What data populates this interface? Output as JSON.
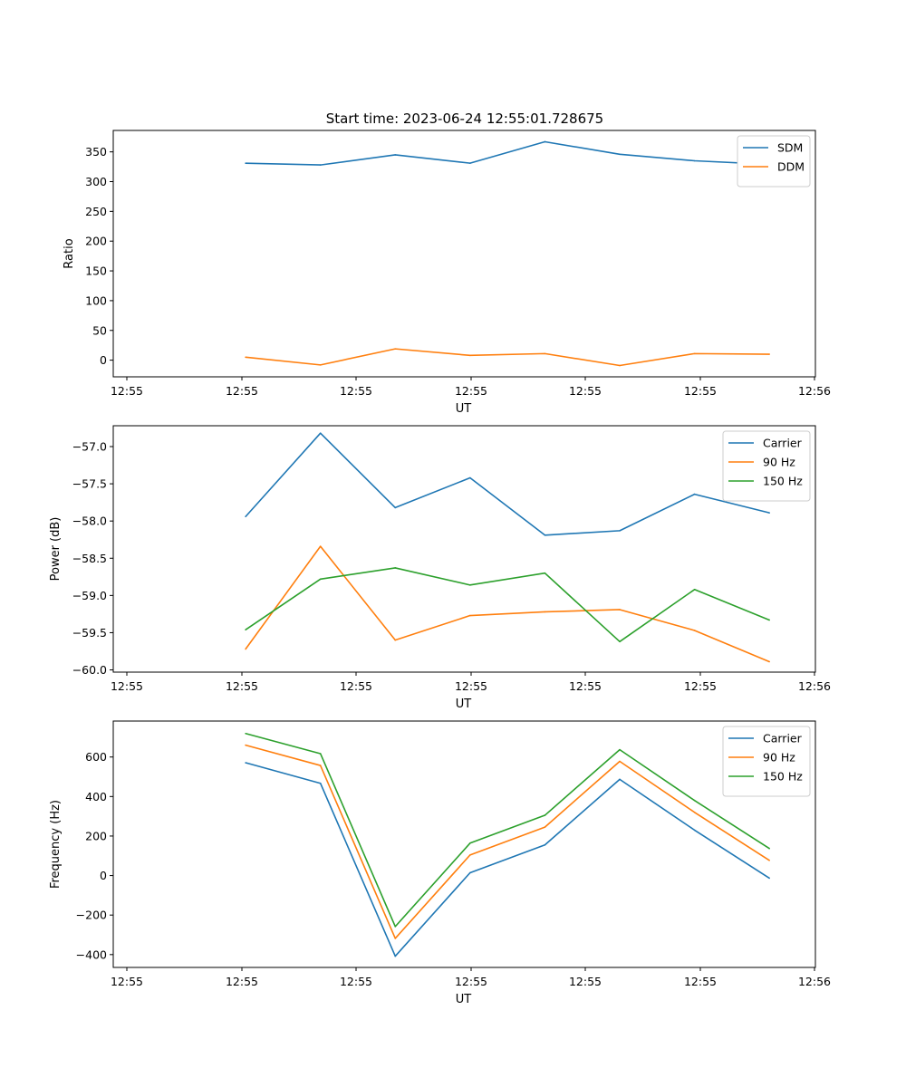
{
  "figure_title": "Start time: 2023-06-24 12:55:01.728675",
  "chart_data": [
    {
      "type": "line",
      "title": "Start time: 2023-06-24 12:55:01.728675",
      "xlabel": "UT",
      "ylabel": "Ratio",
      "x": [
        "12:55:02.3",
        "12:55:03.6",
        "12:55:04.9",
        "12:55:06.2",
        "12:55:07.5",
        "12:55:08.8",
        "12:55:10.1",
        "12:55:11.4"
      ],
      "xlim_seconds_after_start": [
        0,
        12.2
      ],
      "xtick_labels": [
        "12:55",
        "12:55",
        "12:55",
        "12:55",
        "12:55",
        "12:55",
        "12:56"
      ],
      "ylim": [
        -28,
        386
      ],
      "yticks": [
        0,
        50,
        100,
        150,
        200,
        250,
        300,
        350
      ],
      "ytick_labels": [
        "0",
        "50",
        "100",
        "150",
        "200",
        "250",
        "300",
        "350"
      ],
      "legend_position": "top-right",
      "series": [
        {
          "name": "SDM",
          "color": "#1f77b4",
          "values": [
            331,
            328,
            345,
            331,
            367,
            346,
            335,
            329
          ]
        },
        {
          "name": "DDM",
          "color": "#ff7f0e",
          "values": [
            5,
            -8,
            19,
            8,
            11,
            -9,
            11,
            10
          ]
        }
      ]
    },
    {
      "type": "line",
      "xlabel": "UT",
      "ylabel": "Power (dB)",
      "x": [
        "12:55:02.3",
        "12:55:03.6",
        "12:55:04.9",
        "12:55:06.2",
        "12:55:07.5",
        "12:55:08.8",
        "12:55:10.1",
        "12:55:11.4"
      ],
      "xlim_seconds_after_start": [
        0,
        12.2
      ],
      "xtick_labels": [
        "12:55",
        "12:55",
        "12:55",
        "12:55",
        "12:55",
        "12:55",
        "12:56"
      ],
      "ylim": [
        -60.03,
        -56.72
      ],
      "yticks": [
        -60.0,
        -59.5,
        -59.0,
        -58.5,
        -58.0,
        -57.5,
        -57.0
      ],
      "ytick_labels": [
        "−60.0",
        "−59.5",
        "−59.0",
        "−58.5",
        "−58.0",
        "−57.5",
        "−57.0"
      ],
      "legend_position": "top-right",
      "series": [
        {
          "name": "Carrier",
          "color": "#1f77b4",
          "values": [
            -57.94,
            -56.82,
            -57.82,
            -57.42,
            -58.19,
            -58.13,
            -57.64,
            -57.89
          ]
        },
        {
          "name": "90 Hz",
          "color": "#ff7f0e",
          "values": [
            -59.72,
            -58.34,
            -59.6,
            -59.27,
            -59.22,
            -59.19,
            -59.47,
            -59.89
          ]
        },
        {
          "name": "150 Hz",
          "color": "#2ca02c",
          "values": [
            -59.46,
            -58.78,
            -58.63,
            -58.86,
            -58.7,
            -59.62,
            -58.92,
            -59.33
          ]
        }
      ]
    },
    {
      "type": "line",
      "xlabel": "UT",
      "ylabel": "Frequency (Hz)",
      "x": [
        "12:55:02.3",
        "12:55:03.6",
        "12:55:04.9",
        "12:55:06.2",
        "12:55:07.5",
        "12:55:08.8",
        "12:55:10.1",
        "12:55:11.4"
      ],
      "xlim_seconds_after_start": [
        0,
        12.2
      ],
      "xtick_labels": [
        "12:55",
        "12:55",
        "12:55",
        "12:55",
        "12:55",
        "12:55",
        "12:56"
      ],
      "ylim": [
        -465,
        782
      ],
      "yticks": [
        -400,
        -200,
        0,
        200,
        400,
        600
      ],
      "ytick_labels": [
        "−400",
        "−200",
        "0",
        "200",
        "400",
        "600"
      ],
      "legend_position": "top-right",
      "series": [
        {
          "name": "Carrier",
          "color": "#1f77b4",
          "values": [
            571,
            467,
            -408,
            14,
            155,
            487,
            230,
            -13
          ]
        },
        {
          "name": "90 Hz",
          "color": "#ff7f0e",
          "values": [
            660,
            557,
            -318,
            104,
            245,
            578,
            320,
            77
          ]
        },
        {
          "name": "150 Hz",
          "color": "#2ca02c",
          "values": [
            719,
            617,
            -258,
            164,
            305,
            637,
            380,
            137
          ]
        }
      ]
    }
  ]
}
